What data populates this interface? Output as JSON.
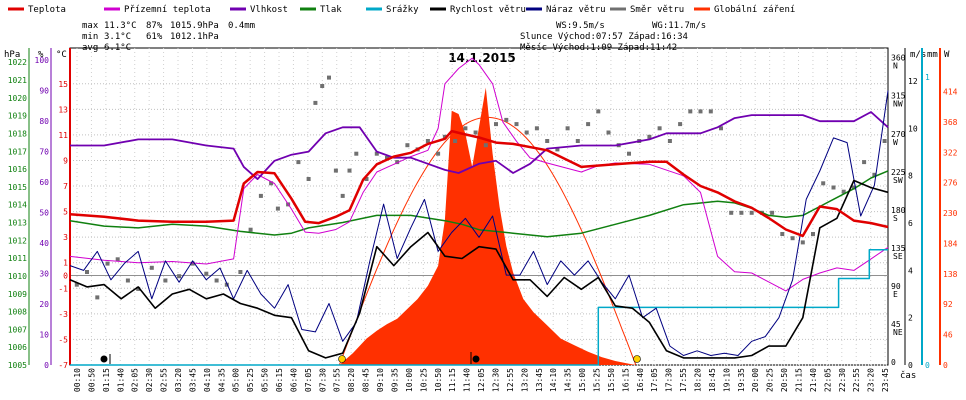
{
  "chart_data": {
    "type": "line",
    "title": "14.1.2015",
    "legend": [
      {
        "name": "Teplota",
        "color": "#e00000"
      },
      {
        "name": "Přízemní teplota",
        "color": "#d000d0"
      },
      {
        "name": "Vlhkost",
        "color": "#7000b0"
      },
      {
        "name": "Tlak",
        "color": "#108010"
      },
      {
        "name": "Srážky",
        "color": "#00a8c8"
      },
      {
        "name": "Rychlost větru",
        "color": "#000000"
      },
      {
        "name": "Náraz větru",
        "color": "#000080"
      },
      {
        "name": "Směr větru",
        "color": "#707070"
      },
      {
        "name": "Globální záření",
        "color": "#ff3000"
      }
    ],
    "stats": {
      "max": {
        "label": "max",
        "temp": "11.3°C",
        "hum": "87%",
        "press": "1015.9hPa",
        "rain": "0.4mm"
      },
      "min": {
        "label": "min",
        "temp": "3.1°C",
        "hum": "61%",
        "press": "1012.1hPa"
      },
      "avg": {
        "label": "avg",
        "temp": "6.1°C"
      }
    },
    "info": {
      "ws": "WS:9.5m/s",
      "wg": "WG:11.7m/s",
      "sun": "Slunce Východ:07:57  Západ:16:34",
      "moon": "Měsíc  Východ:1:09   Západ:11:42"
    },
    "axis_labels": {
      "hpa": "hPa",
      "pct": "%",
      "degc": "°C",
      "ms": "m/s",
      "mm": "mm",
      "wm": "W",
      "time": "čas"
    },
    "axes": {
      "pressure": {
        "ticks": [
          1022,
          1021,
          1020,
          1019,
          1018,
          1017,
          1016,
          1015,
          1014,
          1013,
          1012,
          1011,
          1010,
          1009,
          1008,
          1007,
          1006,
          1005
        ]
      },
      "humidity": {
        "ticks": [
          100,
          90,
          80,
          70,
          60,
          50,
          40,
          30,
          20,
          10,
          0
        ],
        "labels": [
          "100",
          "90",
          "80",
          "70",
          "60",
          "50",
          "40",
          "30",
          "20",
          "10",
          "0"
        ]
      },
      "temperature": {
        "ticks": [
          15,
          13,
          11,
          9,
          7,
          5,
          3,
          1,
          0,
          -1,
          -3,
          -5,
          -7
        ],
        "labels": [
          "15",
          "13",
          "11",
          "9",
          "7",
          "5",
          "3",
          "1",
          "0",
          "-1",
          "-3",
          "-5",
          "-7"
        ]
      },
      "direction": {
        "ticks": [
          360,
          315,
          270,
          225,
          180,
          135,
          90,
          45,
          0
        ],
        "letters": [
          "N",
          "NW",
          "W",
          "SW",
          "S",
          "SE",
          "E",
          "NE",
          ""
        ]
      },
      "wind": {
        "ticks": [
          12,
          10,
          8,
          6,
          4,
          2,
          0
        ]
      },
      "rain": {
        "ticks": [
          1,
          0
        ]
      },
      "radiation": {
        "ticks": [
          414,
          368,
          322,
          276,
          230,
          184,
          138,
          92,
          46,
          0
        ]
      }
    },
    "time_labels": [
      "00:10",
      "00:50",
      "01:15",
      "01:40",
      "02:05",
      "02:30",
      "02:55",
      "03:20",
      "03:45",
      "04:10",
      "04:35",
      "05:00",
      "05:25",
      "05:50",
      "06:15",
      "06:40",
      "07:05",
      "07:30",
      "07:55",
      "08:20",
      "08:45",
      "09:10",
      "09:35",
      "10:00",
      "10:25",
      "10:50",
      "11:15",
      "11:40",
      "12:05",
      "12:30",
      "12:55",
      "13:20",
      "13:45",
      "14:10",
      "14:35",
      "15:00",
      "15:25",
      "15:50",
      "16:15",
      "16:40",
      "17:05",
      "17:30",
      "17:55",
      "18:20",
      "18:45",
      "19:10",
      "19:35",
      "20:00",
      "20:25",
      "20:50",
      "21:15",
      "21:40",
      "22:05",
      "22:30",
      "22:55",
      "23:20",
      "23:45"
    ],
    "x_hours": [
      0,
      24
    ],
    "series": {
      "temperature": {
        "name": "Teplota",
        "x": [
          0,
          1,
          2,
          3,
          4,
          4.8,
          5.1,
          5.5,
          6,
          6.5,
          6.9,
          7.3,
          7.8,
          8.2,
          8.6,
          9,
          9.5,
          10,
          10.5,
          11,
          11.2,
          11.5,
          12,
          12.5,
          13,
          14,
          15,
          16,
          16.5,
          17,
          17.5,
          18,
          18.5,
          19,
          19.5,
          20,
          20.5,
          21,
          21.5,
          22,
          22.5,
          23,
          23.5,
          24
        ],
        "y": [
          4.8,
          4.6,
          4.3,
          4.2,
          4.2,
          4.3,
          7.2,
          8.1,
          8,
          6,
          4.2,
          4.1,
          4.6,
          5.1,
          7.5,
          8.7,
          9.3,
          9.6,
          10.3,
          10.7,
          11.3,
          11.1,
          10.8,
          10.4,
          10.3,
          9.8,
          8.5,
          8.7,
          8.8,
          8.9,
          8.9,
          7.9,
          7,
          6.5,
          5.8,
          5.3,
          4.5,
          3.6,
          3.1,
          5.4,
          5.2,
          4.3,
          4.1,
          3.8
        ]
      },
      "ground_temperature": {
        "name": "Přízemní teplota",
        "x": [
          0,
          1,
          2,
          3,
          4,
          4.8,
          5.1,
          5.5,
          6,
          6.5,
          6.9,
          7.3,
          7.8,
          8.2,
          8.6,
          9,
          9.5,
          10,
          10.5,
          10.8,
          11,
          11.4,
          11.8,
          12,
          12.4,
          12.7,
          13.1,
          13.5,
          14,
          15,
          15.5,
          16,
          17,
          18,
          18.5,
          19,
          19.5,
          20,
          20.5,
          21,
          21.5,
          22,
          22.5,
          23,
          23.5,
          24
        ],
        "y": [
          1.5,
          1.2,
          1,
          1.1,
          0.9,
          1.3,
          6.8,
          7.9,
          7.2,
          5.2,
          3.4,
          3.3,
          3.6,
          4.2,
          6.5,
          8.1,
          8.7,
          9.3,
          9.8,
          11.5,
          15,
          16.2,
          17,
          16.5,
          15,
          12,
          10.5,
          9.2,
          8.8,
          8.1,
          8.6,
          8.8,
          8.7,
          7.8,
          6.5,
          1.5,
          0.3,
          0.2,
          -0.5,
          -1.2,
          -0.3,
          0.2,
          0.6,
          0.4,
          1.3,
          2.2
        ]
      },
      "humidity": {
        "name": "Vlhkost",
        "x": [
          0,
          1,
          2,
          3,
          4,
          4.8,
          5.1,
          5.5,
          6,
          6.5,
          7,
          7.5,
          8,
          8.5,
          9,
          9.5,
          10,
          10.5,
          11,
          11.4,
          12,
          12.5,
          13,
          13.5,
          14,
          15,
          16,
          17,
          17.5,
          18,
          18.5,
          19,
          19.5,
          20,
          20.5,
          21,
          21.5,
          22,
          22.5,
          23,
          23.5,
          24
        ],
        "y": [
          72,
          72,
          74,
          74,
          72,
          71,
          65,
          61,
          67,
          69,
          70,
          76,
          78,
          78,
          70,
          68,
          68,
          66,
          64,
          63,
          66,
          67,
          63,
          66,
          71,
          72,
          72,
          74,
          76,
          76,
          76,
          78,
          81,
          82,
          82,
          82,
          82,
          80,
          80,
          80,
          83,
          78
        ]
      },
      "pressure": {
        "name": "Tlak",
        "x": [
          0,
          1,
          2,
          3,
          4,
          5,
          6,
          6.5,
          7,
          8,
          9,
          10,
          11,
          11.5,
          12,
          13,
          14,
          15,
          16,
          17,
          18,
          19,
          19.5,
          20,
          20.5,
          21,
          21.5,
          22,
          22.5,
          23,
          23.5,
          24
        ],
        "y": [
          1013.1,
          1012.8,
          1012.7,
          1012.9,
          1012.8,
          1012.5,
          1012.3,
          1012.4,
          1012.7,
          1013,
          1013.4,
          1013.4,
          1013.1,
          1012.9,
          1012.6,
          1012.4,
          1012.2,
          1012.4,
          1012.9,
          1013.4,
          1014,
          1014.2,
          1014.1,
          1013.8,
          1013.4,
          1013.3,
          1013.4,
          1013.9,
          1014.4,
          1014.9,
          1015.5,
          1015.9
        ]
      },
      "rain": {
        "name": "Srážky",
        "x": [
          0,
          15.5,
          15.5,
          22.55,
          22.55,
          23.45,
          23.45,
          24
        ],
        "y": [
          0,
          0,
          0.2,
          0.2,
          0.3,
          0.3,
          0.4,
          0.4
        ]
      },
      "wind_speed": {
        "name": "Rychlost větru",
        "x": [
          0,
          0.5,
          1,
          1.5,
          2,
          2.5,
          3,
          3.5,
          4,
          4.5,
          5,
          5.5,
          6,
          6.5,
          7,
          7.5,
          8,
          8.5,
          9,
          9.5,
          10,
          10.5,
          11,
          11.5,
          12,
          12.5,
          13,
          13.5,
          14,
          14.5,
          15,
          15.5,
          16,
          16.5,
          17,
          17.5,
          18,
          18.5,
          19,
          19.5,
          20,
          20.5,
          21,
          21.5,
          22,
          22.5,
          23,
          23.5,
          24
        ],
        "y": [
          3.6,
          3.3,
          3.4,
          2.8,
          3.3,
          2.4,
          3,
          3.2,
          2.8,
          3,
          2.6,
          2.4,
          2.1,
          2,
          0.6,
          0.3,
          0.5,
          2.2,
          5,
          4.2,
          5,
          5.6,
          4.6,
          4.5,
          5,
          4.9,
          3.6,
          3.6,
          2.9,
          3.7,
          3.2,
          3.7,
          2.5,
          2.4,
          1.8,
          0.6,
          0.3,
          0.3,
          0.3,
          0.3,
          0.4,
          0.8,
          0.8,
          2,
          5.8,
          6.2,
          7.8,
          7.5,
          7.3
        ]
      },
      "wind_gust": {
        "name": "Náraz větru",
        "x": [
          0,
          0.4,
          0.8,
          1.2,
          1.6,
          2,
          2.4,
          2.8,
          3.2,
          3.6,
          4,
          4.4,
          4.8,
          5.2,
          5.6,
          6,
          6.4,
          6.8,
          7.2,
          7.6,
          8,
          8.4,
          8.8,
          9.2,
          9.6,
          10,
          10.4,
          10.8,
          11.2,
          11.6,
          12,
          12.4,
          12.8,
          13.2,
          13.6,
          14,
          14.4,
          14.8,
          15.2,
          15.6,
          16,
          16.4,
          16.8,
          17.2,
          17.6,
          18,
          18.4,
          18.8,
          19.2,
          19.6,
          20,
          20.4,
          20.8,
          21.2,
          21.6,
          22,
          22.4,
          22.8,
          23.2,
          23.6,
          24
        ],
        "y": [
          4.2,
          4,
          4.8,
          3.6,
          4.3,
          4.8,
          2.8,
          4.4,
          3.5,
          4.4,
          3.6,
          4.1,
          2.8,
          4,
          3,
          2.4,
          3.4,
          1.5,
          1.4,
          2.6,
          1,
          1.8,
          4.4,
          6.8,
          4.5,
          5.8,
          7,
          4.8,
          5.6,
          6.2,
          5.4,
          6.3,
          3.8,
          3.8,
          4.8,
          3.4,
          4.4,
          3.8,
          4.4,
          3.5,
          2.8,
          3.8,
          2,
          2.4,
          0.8,
          0.4,
          0.6,
          0.4,
          0.5,
          0.4,
          1,
          1.2,
          2,
          3.6,
          7,
          8.2,
          9.6,
          9.4,
          6.3,
          7.6,
          11.6
        ]
      },
      "wind_direction": {
        "name": "Směr větru",
        "x": [
          0.2,
          0.5,
          0.8,
          1.1,
          1.4,
          1.7,
          2,
          2.4,
          2.8,
          3.2,
          3.6,
          4,
          4.3,
          4.6,
          5,
          5.3,
          5.6,
          5.9,
          6.1,
          6.4,
          6.7,
          7,
          7.2,
          7.4,
          7.6,
          7.8,
          8,
          8.2,
          8.4,
          8.7,
          9,
          9.3,
          9.6,
          9.9,
          10.2,
          10.5,
          10.8,
          11,
          11.3,
          11.6,
          11.9,
          12.2,
          12.5,
          12.8,
          13.1,
          13.4,
          13.7,
          14,
          14.3,
          14.6,
          14.9,
          15.2,
          15.5,
          15.8,
          16.1,
          16.4,
          16.7,
          17,
          17.3,
          17.6,
          17.9,
          18.2,
          18.5,
          18.8,
          19.1,
          19.4,
          19.7,
          20,
          20.3,
          20.6,
          20.9,
          21.2,
          21.5,
          21.8,
          22.1,
          22.4,
          22.7,
          23,
          23.3,
          23.6,
          23.9
        ],
        "y": [
          95,
          110,
          80,
          120,
          125,
          100,
          90,
          115,
          100,
          105,
          120,
          108,
          100,
          95,
          110,
          160,
          200,
          215,
          185,
          190,
          240,
          220,
          310,
          330,
          340,
          230,
          200,
          230,
          250,
          220,
          250,
          245,
          240,
          260,
          255,
          265,
          250,
          270,
          265,
          280,
          275,
          260,
          285,
          290,
          285,
          275,
          280,
          265,
          255,
          280,
          265,
          285,
          300,
          275,
          260,
          250,
          265,
          270,
          280,
          265,
          285,
          300,
          300,
          300,
          280,
          180,
          180,
          180,
          180,
          180,
          155,
          150,
          145,
          155,
          215,
          210,
          205,
          210,
          240,
          225,
          265
        ]
      },
      "radiation": {
        "name": "Globální záření",
        "x": [
          7.9,
          8.3,
          8.7,
          9,
          9.3,
          9.6,
          9.9,
          10.2,
          10.5,
          10.8,
          11,
          11.2,
          11.4,
          11.6,
          11.8,
          12,
          12.2,
          12.4,
          12.6,
          12.8,
          13,
          13.3,
          13.6,
          14,
          14.4,
          14.8,
          15.2,
          15.6,
          16,
          16.4,
          16.6
        ],
        "y": [
          0,
          18,
          40,
          52,
          62,
          70,
          85,
          100,
          120,
          150,
          220,
          385,
          380,
          350,
          300,
          360,
          420,
          320,
          240,
          180,
          140,
          100,
          80,
          60,
          40,
          30,
          20,
          12,
          6,
          2,
          0
        ]
      }
    }
  }
}
